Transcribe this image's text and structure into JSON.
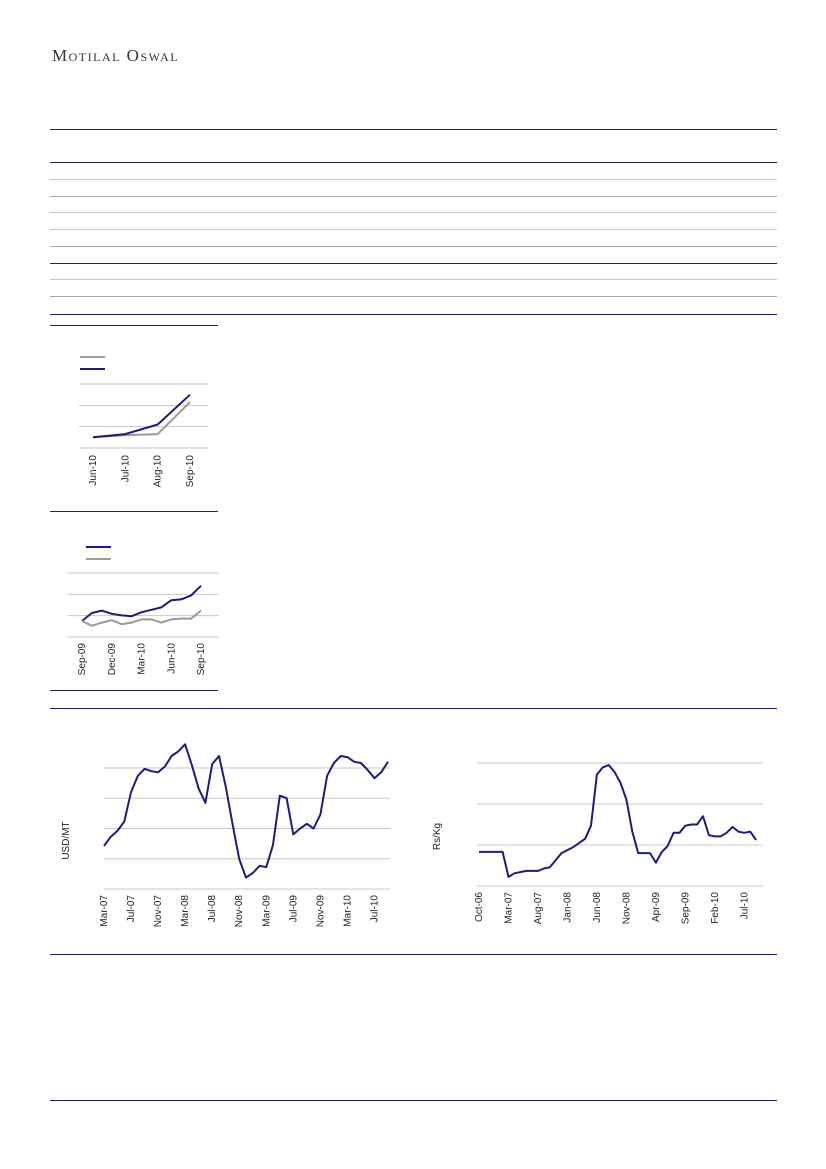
{
  "header": {
    "brand": "Motilal Oswal"
  },
  "colors": {
    "navy": "#1c1c80",
    "gray": "#9a9a9a",
    "rule": "#1c1c6e",
    "grid": "#c8c8c8"
  },
  "chart_data": [
    {
      "type": "line",
      "x": [
        "Jun-10",
        "Jul-10",
        "Aug-10",
        "Sep-10"
      ],
      "series": [
        {
          "values": [
            100,
            102,
            103,
            133
          ],
          "color": "#9a9a9a"
        },
        {
          "values": [
            100,
            103,
            112,
            140
          ],
          "color": "#1c1c80"
        }
      ],
      "ylim": [
        90,
        150
      ],
      "grid": true
    },
    {
      "type": "line",
      "x": [
        "Sep-09",
        "Oct-09",
        "Nov-09",
        "Dec-09",
        "Jan-10",
        "Feb-10",
        "Mar-10",
        "Apr-10",
        "May-10",
        "Jun-10",
        "Jul-10",
        "Aug-10",
        "Sep-10"
      ],
      "x_tick_labels": [
        "Sep-09",
        "Dec-09",
        "Mar-10",
        "Jun-10",
        "Sep-10"
      ],
      "series": [
        {
          "values": [
            100,
            110,
            113,
            109,
            107,
            106,
            111,
            114,
            117,
            126,
            127,
            132,
            144
          ],
          "color": "#1c1c80"
        },
        {
          "values": [
            100,
            94,
            98,
            101,
            96,
            98,
            102,
            102,
            98,
            102,
            103,
            103,
            113
          ],
          "color": "#9a9a9a"
        }
      ],
      "ylim": [
        80,
        160
      ],
      "grid": true
    },
    {
      "type": "line",
      "ylabel": "USD/MT",
      "x_tick_labels": [
        "Mar-07",
        "Jul-07",
        "Nov-07",
        "Mar-08",
        "Jul-08",
        "Nov-08",
        "Mar-09",
        "Jul-09",
        "Nov-09",
        "Mar-10",
        "Jul-10"
      ],
      "x_start": "Mar-07",
      "x_end": "Sep-10",
      "series": [
        {
          "color": "#1c1c80",
          "points": [
            [
              "Mar-07",
              35
            ],
            [
              "Apr-07",
              43
            ],
            [
              "May-07",
              48
            ],
            [
              "Jun-07",
              56
            ],
            [
              "Jul-07",
              81
            ],
            [
              "Aug-07",
              95
            ],
            [
              "Sep-07",
              101
            ],
            [
              "Oct-07",
              99
            ],
            [
              "Nov-07",
              98
            ],
            [
              "Dec-07",
              103
            ],
            [
              "Jan-08",
              112
            ],
            [
              "Feb-08",
              116
            ],
            [
              "Mar-08",
              122
            ],
            [
              "Apr-08",
              104
            ],
            [
              "May-08",
              84
            ],
            [
              "Jun-08",
              72
            ],
            [
              "Jul-08",
              105
            ],
            [
              "Aug-08",
              112
            ],
            [
              "Sep-08",
              86
            ],
            [
              "Oct-08",
              54
            ],
            [
              "Nov-08",
              24
            ],
            [
              "Dec-08",
              8
            ],
            [
              "Jan-09",
              12
            ],
            [
              "Feb-09",
              18
            ],
            [
              "Mar-09",
              17
            ],
            [
              "Apr-09",
              36
            ],
            [
              "May-09",
              78
            ],
            [
              "Jun-09",
              76
            ],
            [
              "Jul-09",
              45
            ],
            [
              "Aug-09",
              50
            ],
            [
              "Sep-09",
              54
            ],
            [
              "Oct-09",
              50
            ],
            [
              "Nov-09",
              62
            ],
            [
              "Dec-09",
              95
            ],
            [
              "Jan-10",
              106
            ],
            [
              "Feb-10",
              112
            ],
            [
              "Mar-10",
              111
            ],
            [
              "Apr-10",
              107
            ],
            [
              "May-10",
              106
            ],
            [
              "Jun-10",
              100
            ],
            [
              "Jul-10",
              93
            ],
            [
              "Aug-10",
              98
            ],
            [
              "Sep-10",
              107
            ]
          ]
        }
      ],
      "grid": true
    },
    {
      "type": "line",
      "ylabel": "Rs/Kg",
      "x_tick_labels": [
        "Oct-06",
        "Mar-07",
        "Aug-07",
        "Jan-08",
        "Jun-08",
        "Nov-08",
        "Apr-09",
        "Sep-09",
        "Feb-10",
        "Jul-10"
      ],
      "x_start": "Oct-06",
      "x_end": "Oct-10",
      "series": [
        {
          "color": "#1c1c80",
          "points": [
            [
              "Oct-06",
              27
            ],
            [
              "Feb-07",
              27
            ],
            [
              "Mar-07",
              6
            ],
            [
              "Apr-07",
              9
            ],
            [
              "Jun-07",
              11
            ],
            [
              "Aug-07",
              11
            ],
            [
              "Sep-07",
              13
            ],
            [
              "Oct-07",
              14
            ],
            [
              "Dec-07",
              26
            ],
            [
              "Feb-08",
              31
            ],
            [
              "Apr-08",
              38
            ],
            [
              "May-08",
              49
            ],
            [
              "Jun-08",
              92
            ],
            [
              "Jul-08",
              98
            ],
            [
              "Aug-08",
              100
            ],
            [
              "Sep-08",
              94
            ],
            [
              "Oct-08",
              85
            ],
            [
              "Nov-08",
              71
            ],
            [
              "Dec-08",
              44
            ],
            [
              "Jan-09",
              26
            ],
            [
              "Feb-09",
              26
            ],
            [
              "Mar-09",
              26
            ],
            [
              "Apr-09",
              18
            ],
            [
              "May-09",
              27
            ],
            [
              "Jun-09",
              32
            ],
            [
              "Jul-09",
              43
            ],
            [
              "Aug-09",
              43
            ],
            [
              "Sep-09",
              49
            ],
            [
              "Oct-09",
              50
            ],
            [
              "Nov-09",
              50
            ],
            [
              "Dec-09",
              57
            ],
            [
              "Jan-10",
              41
            ],
            [
              "Feb-10",
              40
            ],
            [
              "Mar-10",
              40
            ],
            [
              "Apr-10",
              43
            ],
            [
              "May-10",
              48
            ],
            [
              "Jun-10",
              44
            ],
            [
              "Jul-10",
              43
            ],
            [
              "Aug-10",
              44
            ],
            [
              "Sep-10",
              37
            ]
          ]
        }
      ],
      "grid": true
    }
  ]
}
